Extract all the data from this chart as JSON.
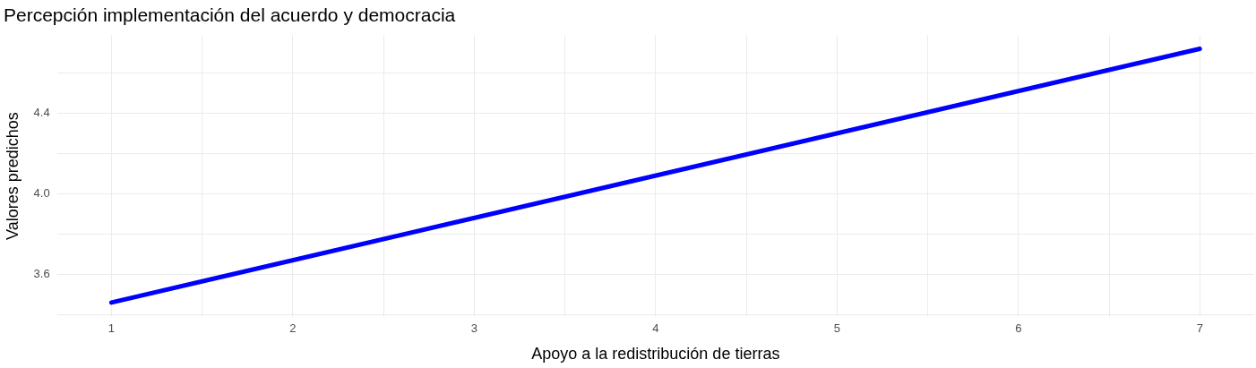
{
  "chart_data": {
    "type": "line",
    "title": "Percepción implementación del acuerdo y democracia",
    "xlabel": "Apoyo a la redistribución de tierras",
    "ylabel": "Valores predichos",
    "x": [
      1,
      7
    ],
    "series": [
      {
        "color": "#0000ff",
        "values": [
          3.461,
          4.722
        ]
      }
    ],
    "xlim": [
      0.7,
      7.3
    ],
    "xticks": [
      1,
      {
        "value": 1.5,
        "label": null
      },
      2,
      {
        "value": 2.5,
        "label": null
      },
      3,
      {
        "value": 3.5,
        "label": null
      },
      4,
      {
        "value": 4.5,
        "label": null
      },
      5,
      {
        "value": 5.5,
        "label": null
      },
      6,
      {
        "value": 6.5,
        "label": null
      },
      7
    ],
    "ylim": [
      3.39,
      4.79
    ],
    "yticks": [
      {
        "value": 3.4,
        "label": null
      },
      3.6,
      {
        "value": 3.8,
        "label": null
      },
      {
        "value": 4.0,
        "label": "4.0"
      },
      {
        "value": 4.2,
        "label": null
      },
      4.4,
      {
        "value": 4.6,
        "label": null
      }
    ],
    "grid": true
  }
}
